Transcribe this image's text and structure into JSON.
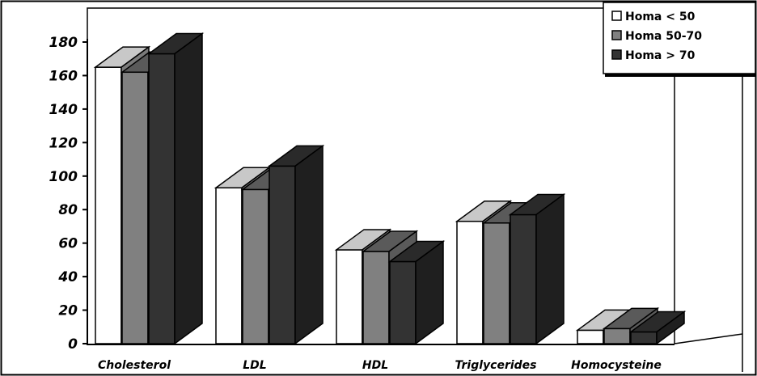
{
  "chart_data": {
    "type": "bar",
    "title": "",
    "xlabel": "",
    "ylabel": "",
    "ylim": [
      0,
      180
    ],
    "yticks": [
      0,
      20,
      40,
      60,
      80,
      100,
      120,
      140,
      160,
      180
    ],
    "categories": [
      "Cholesterol",
      "LDL",
      "HDL",
      "Triglycerides",
      "Homocysteine"
    ],
    "series": [
      {
        "name": "Homa < 50",
        "values": [
          165,
          93,
          56,
          73,
          8
        ],
        "color": "#ffffff"
      },
      {
        "name": "Homa 50-70",
        "values": [
          162,
          92,
          55,
          72,
          9
        ],
        "color": "#808080"
      },
      {
        "name": "Homa > 70",
        "values": [
          173,
          106,
          49,
          77,
          7
        ],
        "color": "#333333"
      }
    ],
    "style": "3d-clustered-column",
    "grid": false,
    "legend": "top-right"
  }
}
